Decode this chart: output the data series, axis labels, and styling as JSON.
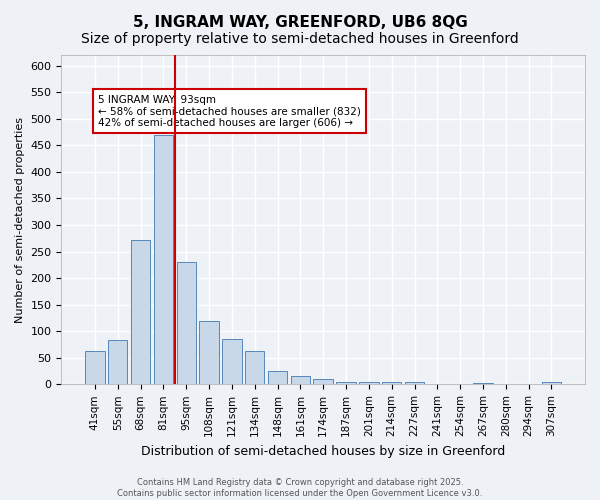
{
  "title": "5, INGRAM WAY, GREENFORD, UB6 8QG",
  "subtitle": "Size of property relative to semi-detached houses in Greenford",
  "xlabel": "Distribution of semi-detached houses by size in Greenford",
  "ylabel": "Number of semi-detached properties",
  "footer_line1": "Contains HM Land Registry data © Crown copyright and database right 2025.",
  "footer_line2": "Contains public sector information licensed under the Open Government Licence v3.0.",
  "annotation_title": "5 INGRAM WAY: 93sqm",
  "annotation_line1": "← 58% of semi-detached houses are smaller (832)",
  "annotation_line2": "42% of semi-detached houses are larger (606) →",
  "bar_labels": [
    "41sqm",
    "55sqm",
    "68sqm",
    "81sqm",
    "95sqm",
    "108sqm",
    "121sqm",
    "134sqm",
    "148sqm",
    "161sqm",
    "174sqm",
    "187sqm",
    "201sqm",
    "214sqm",
    "227sqm",
    "241sqm",
    "254sqm",
    "267sqm",
    "280sqm",
    "294sqm",
    "307sqm"
  ],
  "bar_values": [
    62,
    83,
    272,
    470,
    230,
    119,
    85,
    62,
    25,
    15,
    10,
    5,
    4,
    4,
    4,
    0,
    0,
    3,
    0,
    0,
    5
  ],
  "bar_color": "#c8d8e8",
  "bar_edge_color": "#5588bb",
  "vline_x": 3.5,
  "vline_color": "#cc0000",
  "annotation_box_color": "#cc0000",
  "ylim": [
    0,
    620
  ],
  "yticks": [
    0,
    50,
    100,
    150,
    200,
    250,
    300,
    350,
    400,
    450,
    500,
    550,
    600
  ],
  "background_color": "#eef2f7",
  "grid_color": "#ffffff",
  "title_fontsize": 11,
  "subtitle_fontsize": 10
}
